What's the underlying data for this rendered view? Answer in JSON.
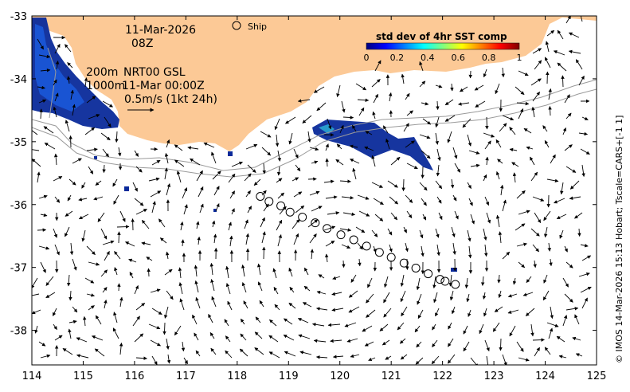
{
  "map": {
    "lon_range": [
      114,
      125
    ],
    "lat_range": [
      -38.55,
      -33
    ],
    "x_ticks": [
      "114",
      "115",
      "116",
      "117",
      "118",
      "119",
      "120",
      "121",
      "122",
      "123",
      "124",
      "125"
    ],
    "y_ticks": [
      "-33",
      "-34",
      "-35",
      "-36",
      "-37",
      "-38"
    ],
    "land_color": "#fcc996",
    "date_line1": "11-Mar-2026",
    "date_line2": "08Z",
    "contour_200": "200m",
    "contour_1000": "1000m",
    "product": "NRT00 GSL",
    "product_time": "11-Mar 00:00Z",
    "scale_label": "0.5m/s (1kt 24h)",
    "ship_label": "Ship",
    "side_credit": "© IMOS 14-Mar-2026 15:13 Hobart; Tscale=CARS+[-1 1]",
    "ship_track": [
      {
        "lon": 118.45,
        "lat": -35.87
      },
      {
        "lon": 118.62,
        "lat": -35.95
      },
      {
        "lon": 118.85,
        "lat": -36.02
      },
      {
        "lon": 119.03,
        "lat": -36.12
      },
      {
        "lon": 119.27,
        "lat": -36.2
      },
      {
        "lon": 119.52,
        "lat": -36.29
      },
      {
        "lon": 119.75,
        "lat": -36.38
      },
      {
        "lon": 120.02,
        "lat": -36.48
      },
      {
        "lon": 120.27,
        "lat": -36.56
      },
      {
        "lon": 120.52,
        "lat": -36.66
      },
      {
        "lon": 120.77,
        "lat": -36.76
      },
      {
        "lon": 121.0,
        "lat": -36.84
      },
      {
        "lon": 121.25,
        "lat": -36.93
      },
      {
        "lon": 121.48,
        "lat": -37.01
      },
      {
        "lon": 121.72,
        "lat": -37.1
      },
      {
        "lon": 121.95,
        "lat": -37.19
      },
      {
        "lon": 122.05,
        "lat": -37.22
      },
      {
        "lon": 122.25,
        "lat": -37.27
      }
    ]
  },
  "colorbar": {
    "title": "std dev of 4hr SST comp",
    "ticks": [
      "0",
      "0.2",
      "0.4",
      "0.6",
      "0.8",
      "1"
    ],
    "stops": [
      "#00007f",
      "#0000ff",
      "#0080ff",
      "#00ffff",
      "#80ff80",
      "#ffff00",
      "#ff8000",
      "#ff0000",
      "#7f0000"
    ]
  }
}
